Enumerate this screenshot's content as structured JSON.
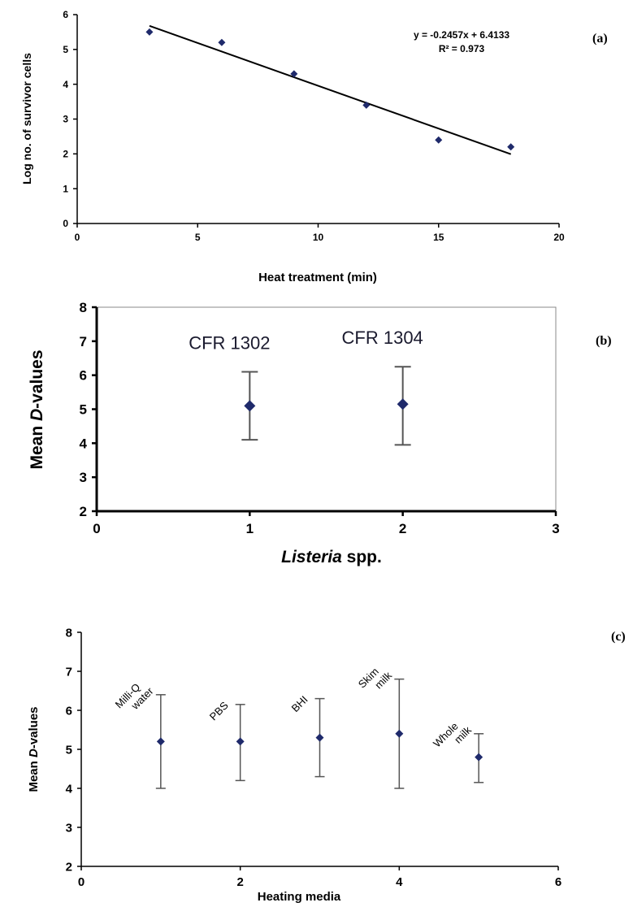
{
  "chart_data": [
    {
      "type": "scatter",
      "panel_label": "(a)",
      "xlabel": "Heat treatment (min)",
      "ylabel": "Log no. of survivor cells",
      "xlim": [
        0,
        20
      ],
      "ylim": [
        0,
        6
      ],
      "xticks": [
        "0",
        "5",
        "10",
        "15",
        "20"
      ],
      "yticks": [
        "0",
        "1",
        "2",
        "3",
        "4",
        "5",
        "6"
      ],
      "points": [
        {
          "x": 3,
          "y": 5.5
        },
        {
          "x": 6,
          "y": 5.2
        },
        {
          "x": 9,
          "y": 4.3
        },
        {
          "x": 12,
          "y": 3.4
        },
        {
          "x": 15,
          "y": 2.4
        },
        {
          "x": 18,
          "y": 2.2
        }
      ],
      "trendline": {
        "slope": -0.2457,
        "intercept": 6.4133,
        "x_range": [
          3,
          18
        ]
      },
      "equation": "y = -0.2457x + 6.4133",
      "r_squared": "R² = 0.973",
      "colors": {
        "marker": "#1f2a6b",
        "line": "#000000"
      }
    },
    {
      "type": "scatter",
      "panel_label": "(b)",
      "xlabel_italic": "Listeria",
      "xlabel_rest": " spp.",
      "ylabel_pre": "Mean ",
      "ylabel_italic": "D",
      "ylabel_post": "-values",
      "xlim": [
        0,
        3
      ],
      "ylim": [
        2,
        8
      ],
      "xticks": [
        "0",
        "1",
        "2",
        "3"
      ],
      "yticks": [
        "2",
        "3",
        "4",
        "5",
        "6",
        "7",
        "8"
      ],
      "points": [
        {
          "x": 1,
          "y": 5.1,
          "err_low": 4.1,
          "err_high": 6.1,
          "label": "CFR 1302"
        },
        {
          "x": 2,
          "y": 5.15,
          "err_low": 3.95,
          "err_high": 6.25,
          "label": "CFR 1304"
        }
      ],
      "colors": {
        "marker": "#1f2a6b",
        "error": "#555555"
      }
    },
    {
      "type": "scatter",
      "panel_label": "(c)",
      "xlabel": "Heating media",
      "ylabel_pre": "Mean ",
      "ylabel_italic": "D",
      "ylabel_post": "-values",
      "xlim": [
        0,
        6
      ],
      "ylim": [
        2,
        8
      ],
      "xticks": [
        "0",
        "2",
        "4",
        "6"
      ],
      "yticks": [
        "2",
        "3",
        "4",
        "5",
        "6",
        "7",
        "8"
      ],
      "points": [
        {
          "x": 1,
          "y": 5.2,
          "err_low": 4.0,
          "err_high": 6.4,
          "label_lines": [
            "Milli-Q",
            "water"
          ]
        },
        {
          "x": 2,
          "y": 5.2,
          "err_low": 4.2,
          "err_high": 6.15,
          "label_lines": [
            "PBS"
          ]
        },
        {
          "x": 3,
          "y": 5.3,
          "err_low": 4.3,
          "err_high": 6.3,
          "label_lines": [
            "BHI"
          ]
        },
        {
          "x": 4,
          "y": 5.4,
          "err_low": 4.0,
          "err_high": 6.8,
          "label_lines": [
            "Skim",
            "milk"
          ]
        },
        {
          "x": 5,
          "y": 4.8,
          "err_low": 4.15,
          "err_high": 5.4,
          "label_lines": [
            "Whole",
            "milk"
          ]
        }
      ],
      "colors": {
        "marker": "#1f2a6b",
        "error": "#555555"
      }
    }
  ]
}
